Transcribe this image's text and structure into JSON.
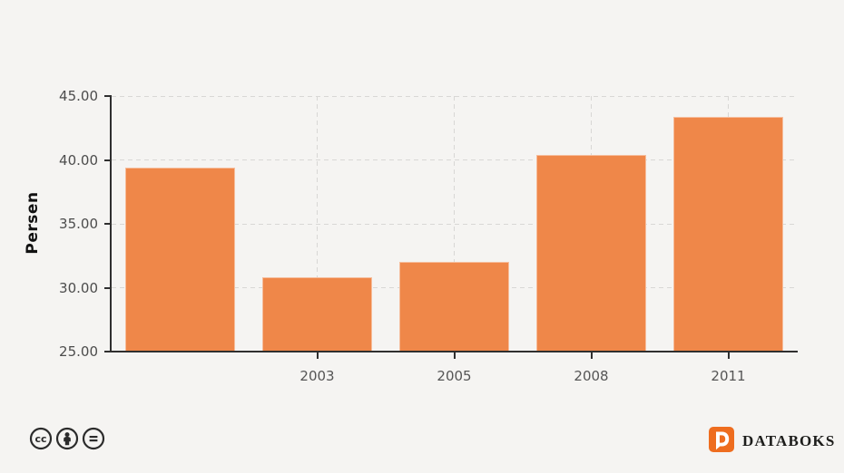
{
  "chart_data": {
    "type": "bar",
    "categories": [
      "",
      "2003",
      "2005",
      "2008",
      "2011"
    ],
    "values": [
      39.4,
      30.8,
      32.0,
      40.4,
      43.4
    ],
    "title": "",
    "xlabel": "",
    "ylabel": "Persen",
    "ylim": [
      25,
      45
    ],
    "yticks": [
      25,
      30,
      35,
      40,
      45
    ],
    "ytick_labels": [
      "25.00",
      "30.00",
      "35.00",
      "40.00",
      "45.00"
    ],
    "grid": "dashed horizontal lines at y ticks and dashed vertical lines at labeled categories",
    "legend": "none",
    "bar_color": "#EF8749"
  },
  "footer": {
    "license": {
      "icons": [
        "cc-icon",
        "attribution-person-icon",
        "no-derivatives-equals-icon"
      ]
    },
    "brand": {
      "name": "DATABOKS",
      "logo": "databoks-d-speech-bubble",
      "logo_color": "#EE6D1F",
      "text_color": "#1D1D1B"
    }
  },
  "colors": {
    "background": "#F5F4F2",
    "bar": "#EF8749",
    "axis": "#2F2F2F",
    "gridline": "#D8D7D5",
    "tick_label": "#4C4C4C",
    "axis_title": "#111111"
  }
}
